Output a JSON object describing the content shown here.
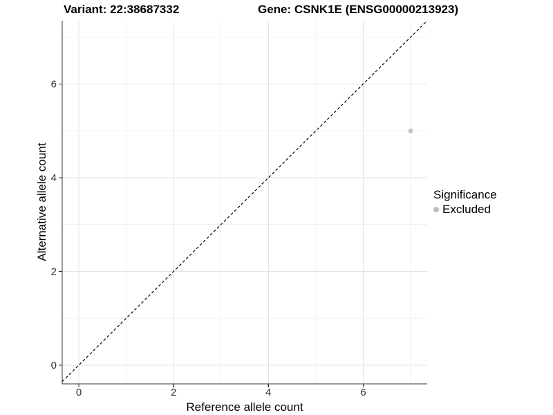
{
  "titles": {
    "variant": "Variant: 22:38687332",
    "gene": "Gene: CSNK1E (ENSG00000213923)"
  },
  "chart_data": {
    "type": "scatter",
    "xlabel": "Reference allele count",
    "ylabel": "Alternative allele count",
    "xlim": [
      -0.35,
      7.35
    ],
    "ylim": [
      -0.4,
      7.35
    ],
    "x_ticks": [
      0,
      2,
      4,
      6
    ],
    "y_ticks": [
      0,
      2,
      4,
      6
    ],
    "x_minor": [
      1,
      3,
      5,
      7
    ],
    "y_minor": [
      1,
      3,
      5,
      7
    ],
    "grid": true,
    "legend_position": "right",
    "points": [
      {
        "x": 7,
        "y": 5,
        "series": "Excluded"
      }
    ],
    "reference_line": {
      "type": "identity",
      "style": "dashed"
    }
  },
  "legend": {
    "title": "Significance",
    "items": [
      {
        "label": "Excluded",
        "color": "#bebebe"
      }
    ]
  },
  "colors": {
    "point": "#c2c2c2",
    "grid_major": "#e3e3e3",
    "grid_minor": "#f1f1f1",
    "axis_line": "#333333",
    "tick_mark": "#333333",
    "tick_label": "#303030",
    "dashed_line": "#000000",
    "background": "#ffffff"
  }
}
